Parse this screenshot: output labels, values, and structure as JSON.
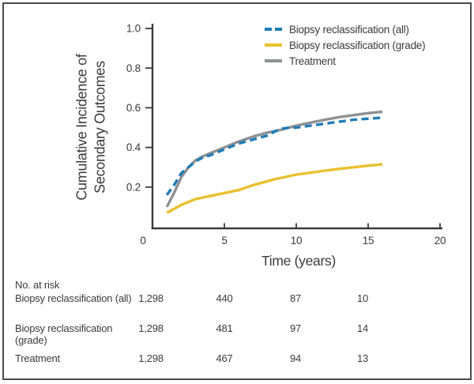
{
  "colors": {
    "axis": "#3b3b3c",
    "frame": "#4a4b4c",
    "text": "#3b3b3c",
    "series_all": "#1f7db7",
    "series_grade": "#eac02e",
    "series_treatment": "#8f9193"
  },
  "chart_data": {
    "type": "line",
    "title": "",
    "xlabel": "Time (years)",
    "ylabel": "Cumulative Incidence of Secondary Outcomes",
    "ylabel_lines": [
      "Cumulative Incidence of",
      "Secondary Outcomes"
    ],
    "xlim": [
      0,
      21
    ],
    "ylim": [
      0,
      1.0
    ],
    "x_ticks": [
      0,
      5,
      10,
      15,
      20
    ],
    "y_ticks": [
      0.2,
      0.4,
      0.6,
      0.8,
      1.0
    ],
    "grid": false,
    "legend_position": "upper right",
    "series": [
      {
        "name": "Biopsy reclassification (all)",
        "color": "#1f7db7",
        "style": "dashed",
        "x": [
          1,
          1.5,
          2,
          2.5,
          3,
          3.5,
          4,
          5,
          6,
          7,
          8,
          8.5,
          9,
          9.5,
          10,
          11,
          12,
          13,
          14,
          15,
          16
        ],
        "y": [
          0.16,
          0.21,
          0.27,
          0.3,
          0.33,
          0.35,
          0.36,
          0.39,
          0.42,
          0.44,
          0.46,
          0.48,
          0.495,
          0.5,
          0.5,
          0.51,
          0.52,
          0.53,
          0.54,
          0.545,
          0.55
        ]
      },
      {
        "name": "Biopsy reclassification (grade)",
        "color": "#eac02e",
        "style": "solid",
        "x": [
          1,
          1.5,
          2,
          2.5,
          3,
          4,
          5,
          6,
          7,
          8,
          8.5,
          9,
          10,
          11,
          12,
          13,
          14,
          15,
          16
        ],
        "y": [
          0.07,
          0.09,
          0.11,
          0.125,
          0.14,
          0.155,
          0.17,
          0.185,
          0.21,
          0.23,
          0.24,
          0.247,
          0.263,
          0.273,
          0.283,
          0.292,
          0.3,
          0.308,
          0.315
        ]
      },
      {
        "name": "Treatment",
        "color": "#8f9193",
        "style": "solid",
        "x": [
          1,
          1.5,
          2,
          2.5,
          3,
          3.5,
          4,
          5,
          6,
          7,
          8,
          9,
          10,
          11,
          12,
          13,
          14,
          15,
          16
        ],
        "y": [
          0.1,
          0.17,
          0.25,
          0.3,
          0.335,
          0.355,
          0.37,
          0.4,
          0.43,
          0.455,
          0.475,
          0.49,
          0.51,
          0.525,
          0.54,
          0.553,
          0.563,
          0.573,
          0.58
        ]
      }
    ]
  },
  "risk_table": {
    "title": "No. at risk",
    "times": [
      0,
      5,
      10,
      15
    ],
    "rows": [
      {
        "label": "Biopsy reclassification (all)",
        "values": [
          "1,298",
          "440",
          "87",
          "10"
        ]
      },
      {
        "label": "Biopsy reclassification (grade)",
        "values": [
          "1,298",
          "481",
          "97",
          "14"
        ]
      },
      {
        "label": "Treatment",
        "values": [
          "1,298",
          "467",
          "94",
          "13"
        ]
      }
    ]
  }
}
